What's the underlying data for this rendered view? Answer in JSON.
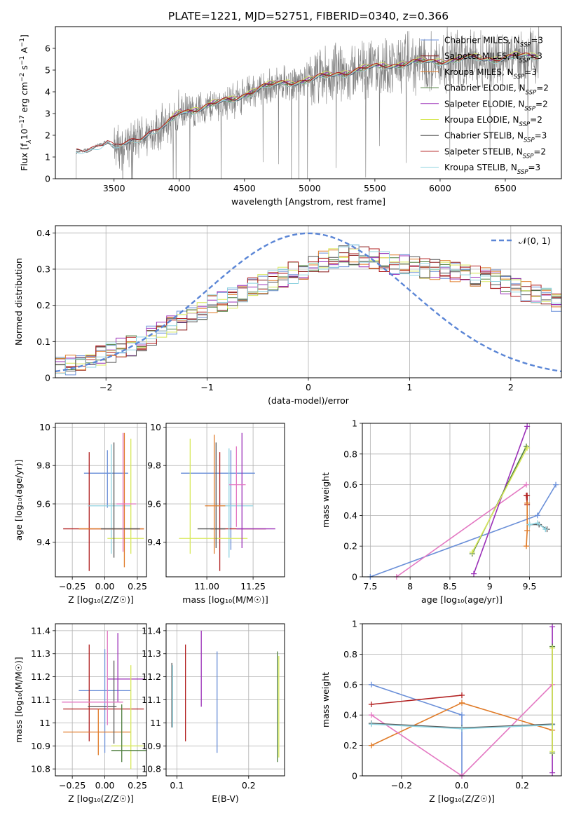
{
  "figure": {
    "title": "PLATE=1221, MJD=52751, FIBERID=0340, z=0.366"
  },
  "chart_data": [
    {
      "id": "spectrum",
      "type": "line",
      "xlabel": "wavelength [Angstrom, rest frame]",
      "ylabel_parts": [
        "Flux [f",
        "λ",
        "10",
        "−17",
        " erg cm",
        "−2",
        " s",
        "−1",
        " A",
        "−1",
        "]"
      ],
      "xlim": [
        3050,
        6930
      ],
      "ylim": [
        0,
        7
      ],
      "xticks": [
        3500,
        4000,
        4500,
        5000,
        5500,
        6000,
        6500
      ],
      "yticks": [
        0,
        1,
        2,
        3,
        4,
        5,
        6
      ],
      "grid": false,
      "legend_position": "top-right",
      "series": [
        {
          "name": "Chabrier MILES, N_SSP=3",
          "label_main": "Chabrier MILES, N",
          "label_sub": "SSP",
          "label_end": "=3",
          "color": "#6a8fd8",
          "x_start": 3540,
          "x_end": 6760,
          "bump": 0.0
        },
        {
          "name": "Salpeter MILES, N_SSP=3",
          "label_main": "Salpeter MILES, N",
          "label_sub": "SSP",
          "label_end": "=3",
          "color": "#8b1a1a",
          "x_start": 3540,
          "x_end": 6760,
          "bump": 0.05
        },
        {
          "name": "Kroupa MILES, N_SSP=3",
          "label_main": "Kroupa MILES, N",
          "label_sub": "SSP",
          "label_end": "=3",
          "color": "#e07b28",
          "x_start": 3540,
          "x_end": 6760,
          "bump": -0.04
        },
        {
          "name": "Chabrier ELODIE, N_SSP=2",
          "label_main": "Chabrier ELODIE, N",
          "label_sub": "SSP",
          "label_end": "=2",
          "color": "#4f7f3f",
          "x_start": 3900,
          "x_end": 6760,
          "bump": 0.02
        },
        {
          "name": "Salpeter ELODIE, N_SSP=2",
          "label_main": "Salpeter ELODIE, N",
          "label_sub": "SSP",
          "label_end": "=2",
          "color": "#9b30b8",
          "x_start": 3900,
          "x_end": 6760,
          "bump": 0.08
        },
        {
          "name": "Kroupa ELODIE, N_SSP=2",
          "label_main": "Kroupa ELODIE, N",
          "label_sub": "SSP",
          "label_end": "=2",
          "color": "#d8e85a",
          "x_start": 3900,
          "x_end": 6760,
          "bump": 0.12
        },
        {
          "name": "Chabrier STELIB, N_SSP=3",
          "label_main": "Chabrier STELIB, N",
          "label_sub": "SSP",
          "label_end": "=3",
          "color": "#555555",
          "x_start": 3210,
          "x_end": 6760,
          "bump": 0.0
        },
        {
          "name": "Salpeter STELIB, N_SSP=2",
          "label_main": "Salpeter STELIB, N",
          "label_sub": "SSP",
          "label_end": "=2",
          "color": "#b22222",
          "x_start": 3210,
          "x_end": 6760,
          "bump": 0.06
        },
        {
          "name": "Kroupa STELIB, N_SSP=3",
          "label_main": "Kroupa STELIB, N",
          "label_sub": "SSP",
          "label_end": "=3",
          "color": "#8fd3e0",
          "x_start": 3210,
          "x_end": 6760,
          "bump": -0.05
        }
      ],
      "continuum": {
        "x": [
          3210,
          3300,
          3450,
          3500,
          3600,
          3700,
          3800,
          3900,
          4000,
          4200,
          4400,
          4600,
          4800,
          5000,
          5200,
          5400,
          5600,
          5800,
          6000,
          6200,
          6400,
          6600,
          6760
        ],
        "y": [
          1.2,
          1.35,
          1.7,
          1.4,
          1.6,
          1.9,
          2.2,
          2.4,
          3.0,
          3.3,
          3.6,
          4.1,
          4.4,
          4.5,
          4.8,
          5.0,
          5.2,
          5.3,
          5.4,
          5.5,
          5.5,
          5.6,
          5.6
        ]
      },
      "data_color": "#808080",
      "data_x_range": [
        3210,
        6760
      ]
    },
    {
      "id": "residuals",
      "type": "step",
      "xlabel": "(data-model)/error",
      "ylabel": "Normed distribution",
      "xlim": [
        -2.5,
        2.5
      ],
      "ylim": [
        0,
        0.42
      ],
      "xticks": [
        -2,
        -1,
        0,
        1,
        2
      ],
      "yticks": [
        0.0,
        0.1,
        0.2,
        0.3,
        0.4
      ],
      "grid": true,
      "legend_position": "top-right",
      "reference_curve": {
        "name": "𝒩(0, 1)",
        "color": "#5b86d6",
        "style": "dashed",
        "mean": 0,
        "sigma": 1
      },
      "bin_width": 0.1,
      "bin_centers_start": -2.45,
      "base_values": [
        0.03,
        0.035,
        0.045,
        0.055,
        0.06,
        0.07,
        0.08,
        0.09,
        0.1,
        0.115,
        0.13,
        0.145,
        0.16,
        0.17,
        0.185,
        0.2,
        0.21,
        0.22,
        0.235,
        0.25,
        0.26,
        0.27,
        0.28,
        0.29,
        0.3,
        0.31,
        0.32,
        0.33,
        0.335,
        0.34,
        0.335,
        0.33,
        0.32,
        0.315,
        0.31,
        0.305,
        0.3,
        0.3,
        0.295,
        0.29,
        0.285,
        0.28,
        0.275,
        0.27,
        0.26,
        0.25,
        0.24,
        0.23,
        0.22,
        0.21,
        0.2,
        0.19,
        0.18,
        0.17,
        0.16,
        0.15,
        0.14,
        0.13,
        0.12,
        0.11,
        0.1,
        0.09,
        0.085,
        0.08,
        0.075,
        0.07,
        0.065,
        0.06,
        0.055,
        0.05
      ],
      "series_colors": [
        "#6a8fd8",
        "#8b1a1a",
        "#e07b28",
        "#4f7f3f",
        "#9b30b8",
        "#d8e85a",
        "#555555",
        "#b22222",
        "#8fd3e0"
      ]
    },
    {
      "id": "age-vs-Z",
      "type": "errorbar",
      "xlabel": "Z [log₁₀(Z/Z☉)]",
      "ylabel": "age  [log₁₀(age/yr)]",
      "xlim": [
        -0.38,
        0.32
      ],
      "ylim": [
        9.22,
        10.02
      ],
      "xticks": [
        -0.25,
        0.0,
        0.25
      ],
      "xtick_labels": [
        "−0.25",
        "0.00",
        "0.25"
      ],
      "yticks": [
        9.4,
        9.6,
        9.8,
        10.0
      ],
      "grid": true,
      "points": [
        {
          "x": 0.02,
          "y": 9.76,
          "xerr": [
            0.18,
            0.16
          ],
          "yerr": [
            0.18,
            0.12
          ],
          "color": "#6a8fd8"
        },
        {
          "x": -0.12,
          "y": 9.47,
          "xerr": [
            0.2,
            0.42
          ],
          "yerr": [
            0.22,
            0.4
          ],
          "color": "#b22222"
        },
        {
          "x": 0.05,
          "y": 9.59,
          "xerr": [
            0.18,
            0.15
          ],
          "yerr": [
            0.25,
            0.32
          ],
          "color": "#8fd3e0"
        },
        {
          "x": 0.2,
          "y": 9.42,
          "xerr": [
            0.18,
            0.1
          ],
          "yerr": [
            0.08,
            0.52
          ],
          "color": "#d8e85a"
        },
        {
          "x": 0.15,
          "y": 9.47,
          "xerr": [
            0.35,
            0.15
          ],
          "yerr": [
            0.2,
            0.5
          ],
          "color": "#e07b28"
        },
        {
          "x": 0.07,
          "y": 9.47,
          "xerr": [
            0.1,
            0.2
          ],
          "yerr": [
            0.15,
            0.45
          ],
          "color": "#555555"
        },
        {
          "x": 0.14,
          "y": 9.6,
          "xerr": [
            0.05,
            0.1
          ],
          "yerr": [
            0.25,
            0.37
          ],
          "color": "#e377c2"
        }
      ]
    },
    {
      "id": "age-vs-mass",
      "type": "errorbar",
      "xlabel": "mass [log₁₀(M/M☉)]",
      "ylabel": "",
      "xlim": [
        10.78,
        11.42
      ],
      "ylim": [
        9.22,
        10.02
      ],
      "xticks": [
        11.0,
        11.25
      ],
      "xtick_labels": [
        "11.00",
        "11.25"
      ],
      "yticks": [
        9.4,
        9.6,
        9.8,
        10.0
      ],
      "grid": true,
      "points": [
        {
          "x": 11.13,
          "y": 9.76,
          "xerr": [
            0.27,
            0.13
          ],
          "yerr": [
            0.4,
            0.12
          ],
          "color": "#6a8fd8"
        },
        {
          "x": 11.07,
          "y": 9.47,
          "xerr": [
            0.05,
            0.25
          ],
          "yerr": [
            0.22,
            0.4
          ],
          "color": "#b22222"
        },
        {
          "x": 11.12,
          "y": 9.59,
          "xerr": [
            0.07,
            0.13
          ],
          "yerr": [
            0.27,
            0.3
          ],
          "color": "#8fd3e0"
        },
        {
          "x": 10.91,
          "y": 9.42,
          "xerr": [
            0.06,
            0.31
          ],
          "yerr": [
            0.08,
            0.52
          ],
          "color": "#d8e85a"
        },
        {
          "x": 11.19,
          "y": 9.47,
          "xerr": [
            0.03,
            0.18
          ],
          "yerr": [
            0.1,
            0.5
          ],
          "color": "#9b30b8"
        },
        {
          "x": 11.05,
          "y": 9.47,
          "xerr": [
            0.1,
            0.05
          ],
          "yerr": [
            0.1,
            0.45
          ],
          "color": "#555555"
        },
        {
          "x": 11.04,
          "y": 9.59,
          "xerr": [
            0.05,
            0.06
          ],
          "yerr": [
            0.25,
            0.37
          ],
          "color": "#e07b28"
        },
        {
          "x": 11.16,
          "y": 9.7,
          "xerr": [
            0.04,
            0.05
          ],
          "yerr": [
            0.22,
            0.2
          ],
          "color": "#e377c2"
        }
      ]
    },
    {
      "id": "massweight-vs-age",
      "type": "line",
      "xlabel": "age  [log₁₀(age/yr)]",
      "ylabel": "mass weight",
      "xlim": [
        7.4,
        9.9
      ],
      "ylim": [
        0,
        1
      ],
      "xticks": [
        7.5,
        8.0,
        8.5,
        9.0,
        9.5
      ],
      "yticks": [
        0.0,
        0.2,
        0.4,
        0.6,
        0.8,
        1.0
      ],
      "grid": true,
      "series": [
        {
          "x": [
            7.5,
            9.6,
            9.83
          ],
          "y": [
            0.0,
            0.4,
            0.6
          ],
          "color": "#6a8fd8"
        },
        {
          "x": [
            7.83,
            9.46
          ],
          "y": [
            0.0,
            0.6
          ],
          "color": "#e377c2"
        },
        {
          "x": [
            8.8,
            9.47
          ],
          "y": [
            0.02,
            0.98
          ],
          "color": "#9b30b8"
        },
        {
          "x": [
            8.78,
            9.46
          ],
          "y": [
            0.15,
            0.85
          ],
          "color": "#4f7f3f"
        },
        {
          "x": [
            8.78,
            9.47
          ],
          "y": [
            0.16,
            0.84
          ],
          "color": "#d8e85a"
        },
        {
          "x": [
            9.46,
            9.47,
            9.47
          ],
          "y": [
            0.53,
            0.47,
            0.53
          ],
          "color": "#b22222"
        },
        {
          "x": [
            9.46,
            9.47,
            9.47
          ],
          "y": [
            0.2,
            0.3,
            0.48
          ],
          "color": "#e07b28"
        },
        {
          "x": [
            9.5,
            9.62,
            9.72
          ],
          "y": [
            0.34,
            0.34,
            0.31
          ],
          "color": "#555555"
        },
        {
          "x": [
            9.5,
            9.6,
            9.7
          ],
          "y": [
            0.34,
            0.35,
            0.31
          ],
          "color": "#8fd3e0"
        }
      ]
    },
    {
      "id": "mass-vs-Z",
      "type": "errorbar",
      "xlabel": "Z [log₁₀(Z/Z☉)]",
      "ylabel": "mass [log₁₀(M/M☉)]",
      "xlim": [
        -0.38,
        0.32
      ],
      "ylim": [
        10.77,
        11.43
      ],
      "xticks": [
        -0.25,
        0.0,
        0.25
      ],
      "xtick_labels": [
        "−0.25",
        "0.00",
        "0.25"
      ],
      "yticks": [
        10.8,
        10.9,
        11.0,
        11.1,
        11.2,
        11.3,
        11.4
      ],
      "grid": true,
      "points": [
        {
          "x": 0.0,
          "y": 11.14,
          "xerr": [
            0.2,
            0.2
          ],
          "yerr": [
            0.27,
            0.18
          ],
          "color": "#6a8fd8"
        },
        {
          "x": -0.12,
          "y": 11.06,
          "xerr": [
            0.2,
            0.42
          ],
          "yerr": [
            0.14,
            0.28
          ],
          "color": "#b22222"
        },
        {
          "x": 0.1,
          "y": 11.19,
          "xerr": [
            0.08,
            0.2
          ],
          "yerr": [
            0.1,
            0.2
          ],
          "color": "#9b30b8"
        },
        {
          "x": -0.05,
          "y": 10.96,
          "xerr": [
            0.27,
            0.25
          ],
          "yerr": [
            0.1,
            0.1
          ],
          "color": "#e07b28"
        },
        {
          "x": 0.2,
          "y": 10.9,
          "xerr": [
            0.15,
            0.1
          ],
          "yerr": [
            0.1,
            0.35
          ],
          "color": "#d8e85a"
        },
        {
          "x": 0.07,
          "y": 11.07,
          "xerr": [
            0.2,
            0.02
          ],
          "yerr": [
            0.16,
            0.2
          ],
          "color": "#555555"
        },
        {
          "x": 0.02,
          "y": 11.09,
          "xerr": [
            0.35,
            0.12
          ],
          "yerr": [
            0.1,
            0.31
          ],
          "color": "#e377c2"
        },
        {
          "x": 0.13,
          "y": 10.88,
          "xerr": [
            0.08,
            0.2
          ],
          "yerr": [
            0.05,
            0.2
          ],
          "color": "#4f7f3f"
        }
      ]
    },
    {
      "id": "mass-vs-ebv",
      "type": "errorbar",
      "xlabel": "E(B-V)",
      "ylabel": "",
      "xlim": [
        0.085,
        0.25
      ],
      "ylim": [
        10.77,
        11.43
      ],
      "xticks": [
        0.1,
        0.2
      ],
      "xtick_labels": [
        "0.1",
        "0.2"
      ],
      "yticks": [
        10.8,
        10.9,
        11.0,
        11.1,
        11.2,
        11.3,
        11.4
      ],
      "grid": true,
      "points": [
        {
          "x": 0.093,
          "y": 11.1,
          "xerr": [
            0,
            0
          ],
          "yerr": [
            0.12,
            0.16
          ],
          "color": "#555555"
        },
        {
          "x": 0.094,
          "y": 11.1,
          "xerr": [
            0,
            0
          ],
          "yerr": [
            0.12,
            0.15
          ],
          "color": "#8fd3e0"
        },
        {
          "x": 0.112,
          "y": 11.13,
          "xerr": [
            0,
            0
          ],
          "yerr": [
            0.21,
            0.21
          ],
          "color": "#b22222"
        },
        {
          "x": 0.134,
          "y": 11.24,
          "xerr": [
            0,
            0
          ],
          "yerr": [
            0.17,
            0.16
          ],
          "color": "#9b30b8"
        },
        {
          "x": 0.156,
          "y": 11.09,
          "xerr": [
            0,
            0
          ],
          "yerr": [
            0.22,
            0.22
          ],
          "color": "#6a8fd8"
        },
        {
          "x": 0.24,
          "y": 11.07,
          "xerr": [
            0,
            0
          ],
          "yerr": [
            0.24,
            0.24
          ],
          "color": "#4f7f3f"
        },
        {
          "x": 0.242,
          "y": 11.05,
          "xerr": [
            0,
            0
          ],
          "yerr": [
            0.2,
            0.24
          ],
          "color": "#d8e85a"
        }
      ]
    },
    {
      "id": "massweight-vs-Z",
      "type": "line",
      "xlabel": "Z [log₁₀(Z/Z☉)]",
      "ylabel": "mass weight",
      "xlim": [
        -0.33,
        0.33
      ],
      "ylim": [
        0,
        1
      ],
      "xticks": [
        -0.2,
        0.0,
        0.2
      ],
      "xtick_labels": [
        "−0.2",
        "0.0",
        "0.2"
      ],
      "yticks": [
        0.0,
        0.2,
        0.4,
        0.6,
        0.8,
        1.0
      ],
      "grid": true,
      "series": [
        {
          "x": [
            -0.3,
            0.0,
            0.0
          ],
          "y": [
            0.6,
            0.4,
            0.0
          ],
          "color": "#6a8fd8"
        },
        {
          "x": [
            -0.3,
            0.0
          ],
          "y": [
            0.47,
            0.53
          ],
          "color": "#b22222"
        },
        {
          "x": [
            -0.3,
            0.0,
            0.3
          ],
          "y": [
            0.2,
            0.48,
            0.3
          ],
          "color": "#e07b28"
        },
        {
          "x": [
            -0.3,
            0.0,
            0.3
          ],
          "y": [
            0.4,
            0.0,
            0.6
          ],
          "color": "#e377c2"
        },
        {
          "x": [
            -0.3,
            0.0,
            0.3
          ],
          "y": [
            0.345,
            0.315,
            0.34
          ],
          "color": "#555555"
        },
        {
          "x": [
            -0.3,
            0.0,
            0.3
          ],
          "y": [
            0.34,
            0.31,
            0.335
          ],
          "color": "#8fd3e0"
        },
        {
          "x": [
            0.3,
            0.3
          ],
          "y": [
            0.02,
            0.98
          ],
          "color": "#9b30b8"
        },
        {
          "x": [
            0.3,
            0.3
          ],
          "y": [
            0.15,
            0.85
          ],
          "color": "#4f7f3f"
        },
        {
          "x": [
            0.3,
            0.3
          ],
          "y": [
            0.16,
            0.84
          ],
          "color": "#d8e85a"
        }
      ]
    }
  ]
}
